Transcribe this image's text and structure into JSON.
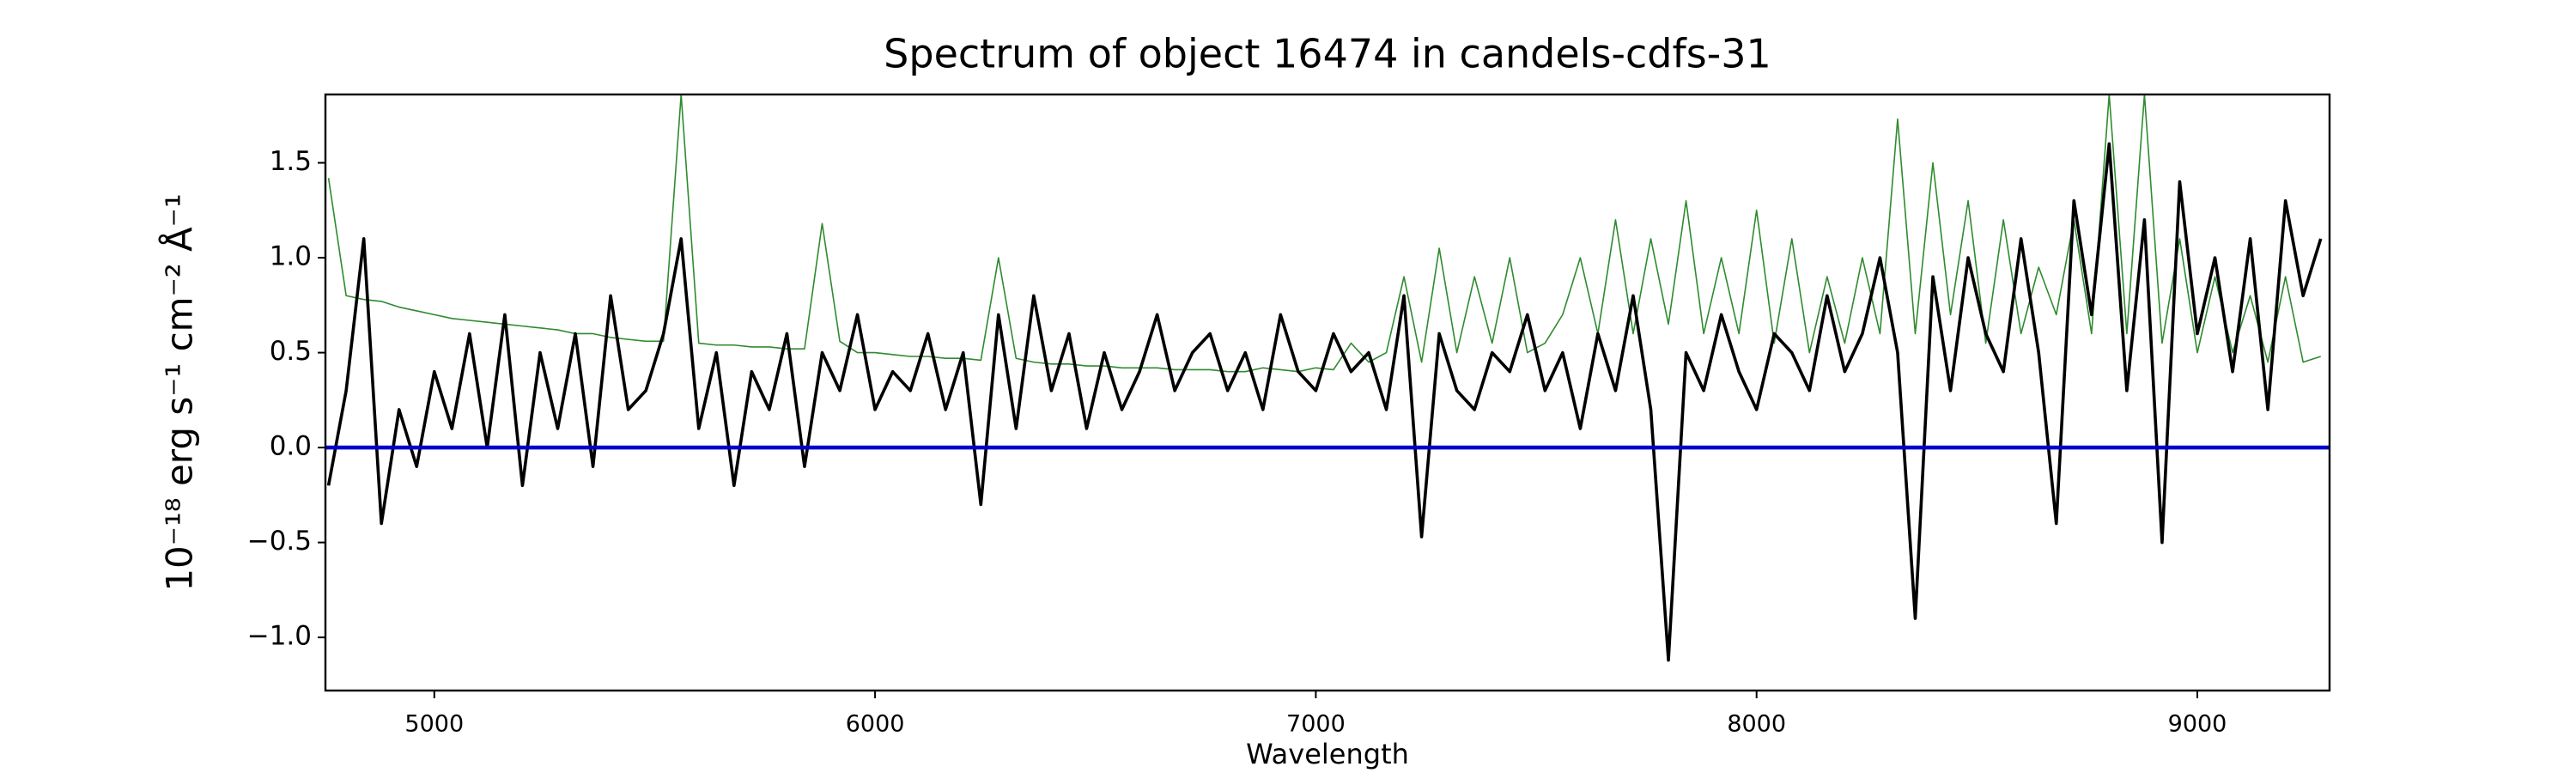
{
  "chart_data": {
    "type": "line",
    "title": "Spectrum of object 16474 in candels-cdfs-31",
    "xlabel": "Wavelength",
    "ylabel": "10⁻¹⁸ erg s⁻¹ cm⁻² Å⁻¹",
    "xlim": [
      4753,
      9300
    ],
    "ylim": [
      -1.28,
      1.86
    ],
    "xticks": [
      5000,
      6000,
      7000,
      8000,
      9000
    ],
    "yticks": [
      {
        "value": -1,
        "label": "−1.0"
      },
      {
        "value": -0.5,
        "label": "−0.5"
      },
      {
        "value": 0,
        "label": "0.0"
      },
      0.5,
      {
        "value": 1,
        "label": "1.0"
      },
      1.5
    ],
    "grid": false,
    "x": [
      4760,
      4800,
      4840,
      4880,
      4920,
      4960,
      5000,
      5040,
      5080,
      5120,
      5160,
      5200,
      5240,
      5280,
      5320,
      5360,
      5400,
      5440,
      5480,
      5520,
      5560,
      5600,
      5640,
      5680,
      5720,
      5760,
      5800,
      5840,
      5880,
      5920,
      5960,
      6000,
      6040,
      6080,
      6120,
      6160,
      6200,
      6240,
      6280,
      6320,
      6360,
      6400,
      6440,
      6480,
      6520,
      6560,
      6600,
      6640,
      6680,
      6720,
      6760,
      6800,
      6840,
      6880,
      6920,
      6960,
      7000,
      7040,
      7080,
      7120,
      7160,
      7200,
      7240,
      7280,
      7320,
      7360,
      7400,
      7440,
      7480,
      7520,
      7560,
      7600,
      7640,
      7680,
      7720,
      7760,
      7800,
      7840,
      7880,
      7920,
      7960,
      8000,
      8040,
      8080,
      8120,
      8160,
      8200,
      8240,
      8280,
      8320,
      8360,
      8400,
      8440,
      8480,
      8520,
      8560,
      8600,
      8640,
      8680,
      8720,
      8760,
      8800,
      8840,
      8880,
      8920,
      8960,
      9000,
      9040,
      9080,
      9120,
      9160,
      9200,
      9240,
      9280
    ],
    "series": [
      {
        "color": "#2e8b2e",
        "width": 1.6,
        "values": [
          1.42,
          0.8,
          0.78,
          0.77,
          0.74,
          0.72,
          0.7,
          0.68,
          0.67,
          0.66,
          0.65,
          0.64,
          0.63,
          0.62,
          0.6,
          0.6,
          0.58,
          0.57,
          0.56,
          0.56,
          1.86,
          0.55,
          0.54,
          0.54,
          0.53,
          0.53,
          0.52,
          0.52,
          1.18,
          0.56,
          0.5,
          0.5,
          0.49,
          0.48,
          0.48,
          0.47,
          0.47,
          0.46,
          1.0,
          0.47,
          0.45,
          0.44,
          0.44,
          0.43,
          0.43,
          0.42,
          0.42,
          0.42,
          0.41,
          0.41,
          0.41,
          0.4,
          0.4,
          0.42,
          0.41,
          0.4,
          0.42,
          0.41,
          0.55,
          0.45,
          0.5,
          0.9,
          0.45,
          1.05,
          0.5,
          0.9,
          0.55,
          1.0,
          0.5,
          0.55,
          0.7,
          1.0,
          0.6,
          1.2,
          0.6,
          1.1,
          0.65,
          1.3,
          0.6,
          1.0,
          0.6,
          1.25,
          0.55,
          1.1,
          0.5,
          0.9,
          0.55,
          1.0,
          0.6,
          1.73,
          0.6,
          1.5,
          0.7,
          1.3,
          0.55,
          1.2,
          0.6,
          0.95,
          0.7,
          1.2,
          0.6,
          1.86,
          0.6,
          1.86,
          0.55,
          1.1,
          0.5,
          0.9,
          0.5,
          0.8,
          0.45,
          0.9,
          0.45,
          0.48
        ]
      },
      {
        "color": "#000000",
        "width": 3.6,
        "values": [
          -0.2,
          0.3,
          1.1,
          -0.4,
          0.2,
          -0.1,
          0.4,
          0.1,
          0.6,
          0.0,
          0.7,
          -0.2,
          0.5,
          0.1,
          0.6,
          -0.1,
          0.8,
          0.2,
          0.3,
          0.6,
          1.1,
          0.1,
          0.5,
          -0.2,
          0.4,
          0.2,
          0.6,
          -0.1,
          0.5,
          0.3,
          0.7,
          0.2,
          0.4,
          0.3,
          0.6,
          0.2,
          0.5,
          -0.3,
          0.7,
          0.1,
          0.8,
          0.3,
          0.6,
          0.1,
          0.5,
          0.2,
          0.4,
          0.7,
          0.3,
          0.5,
          0.6,
          0.3,
          0.5,
          0.2,
          0.7,
          0.4,
          0.3,
          0.6,
          0.4,
          0.5,
          0.2,
          0.8,
          -0.47,
          0.6,
          0.3,
          0.2,
          0.5,
          0.4,
          0.7,
          0.3,
          0.5,
          0.1,
          0.6,
          0.3,
          0.8,
          0.2,
          -1.12,
          0.5,
          0.3,
          0.7,
          0.4,
          0.2,
          0.6,
          0.5,
          0.3,
          0.8,
          0.4,
          0.6,
          1.0,
          0.5,
          -0.9,
          0.9,
          0.3,
          1.0,
          0.6,
          0.4,
          1.1,
          0.5,
          -0.4,
          1.3,
          0.7,
          1.6,
          0.3,
          1.2,
          -0.5,
          1.4,
          0.6,
          1.0,
          0.4,
          1.1,
          0.2,
          1.3,
          0.8,
          1.1
        ]
      },
      {
        "color": "#0000cc",
        "width": 4.6,
        "x": [
          4753,
          9300
        ],
        "values": [
          0,
          0
        ]
      }
    ]
  }
}
